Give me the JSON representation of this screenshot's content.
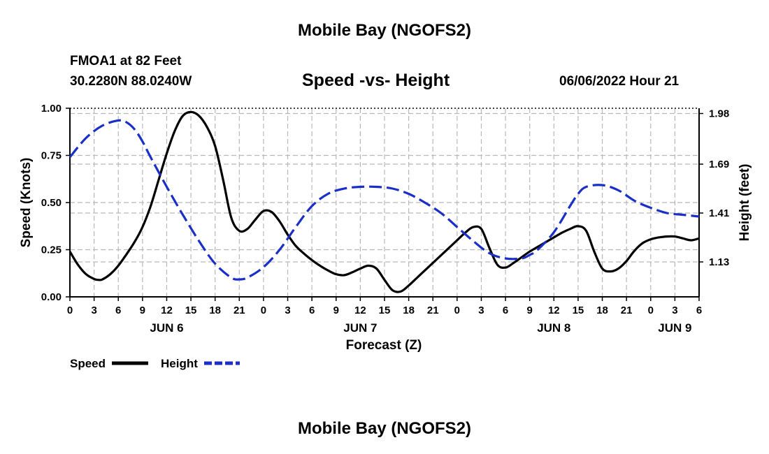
{
  "header": {
    "title": "Mobile Bay (NGOFS2)",
    "station": "FMOA1 at 82 Feet",
    "coords": "30.2280N  88.0240W",
    "datetime": "06/06/2022 Hour 21"
  },
  "footer": {
    "title": "Mobile Bay (NGOFS2)"
  },
  "chart_data": {
    "type": "line",
    "title": "Speed -vs- Height",
    "xlabel": "Forecast (Z)",
    "ylabel": "Speed (Knots)",
    "y2label": "Height (feet)",
    "xlim": [
      0,
      78
    ],
    "ylim": [
      0,
      1.0
    ],
    "y2lim": [
      0.93,
      2.01
    ],
    "x_ticks": [
      0,
      3,
      6,
      9,
      12,
      15,
      18,
      21,
      24,
      27,
      30,
      33,
      36,
      39,
      42,
      45,
      48,
      51,
      54,
      57,
      60,
      63,
      66,
      69,
      72,
      75,
      78
    ],
    "x_tick_labels": [
      "0",
      "3",
      "6",
      "9",
      "12",
      "15",
      "18",
      "21",
      "0",
      "3",
      "6",
      "9",
      "12",
      "15",
      "18",
      "21",
      "0",
      "3",
      "6",
      "9",
      "12",
      "15",
      "18",
      "21",
      "0",
      "3",
      "6"
    ],
    "day_labels": [
      {
        "x": 12,
        "label": "JUN 6"
      },
      {
        "x": 36,
        "label": "JUN 7"
      },
      {
        "x": 60,
        "label": "JUN 8"
      },
      {
        "x": 75,
        "label": "JUN 9"
      }
    ],
    "y_ticks": [
      0.0,
      0.25,
      0.5,
      0.75,
      1.0
    ],
    "y_tick_labels": [
      "0.00",
      "0.25",
      "0.50",
      "0.75",
      "1.00"
    ],
    "y2_ticks": [
      1.13,
      1.41,
      1.69,
      1.98
    ],
    "y2_tick_labels": [
      "1.13",
      "1.41",
      "1.69",
      "1.98"
    ],
    "grid": true,
    "legend": "bottom-left",
    "series": [
      {
        "name": "Speed",
        "axis": "left",
        "color": "#000000",
        "dash": "solid",
        "x": [
          0,
          1,
          2,
          3,
          3.5,
          4,
          5,
          6,
          7,
          8,
          9,
          10,
          11,
          12,
          13,
          14,
          15,
          16,
          17,
          18,
          19,
          20,
          21,
          22,
          23,
          24,
          25,
          26,
          27,
          28,
          29,
          30,
          31,
          32,
          33,
          34,
          35,
          36,
          37,
          38,
          39,
          40,
          41,
          42,
          43,
          44,
          45,
          46,
          47,
          48,
          49,
          50,
          51,
          52,
          53,
          54,
          55,
          56,
          57,
          58,
          59,
          60,
          61,
          62,
          63,
          64,
          65,
          66,
          67,
          68,
          69,
          70,
          71,
          72,
          73,
          74,
          75,
          76,
          77,
          78
        ],
        "values": [
          0.24,
          0.17,
          0.12,
          0.095,
          0.09,
          0.092,
          0.12,
          0.165,
          0.225,
          0.29,
          0.37,
          0.48,
          0.62,
          0.76,
          0.88,
          0.96,
          0.98,
          0.96,
          0.9,
          0.8,
          0.62,
          0.42,
          0.35,
          0.36,
          0.41,
          0.455,
          0.45,
          0.4,
          0.33,
          0.27,
          0.23,
          0.195,
          0.165,
          0.14,
          0.12,
          0.115,
          0.13,
          0.15,
          0.165,
          0.15,
          0.09,
          0.035,
          0.028,
          0.06,
          0.1,
          0.14,
          0.18,
          0.22,
          0.26,
          0.3,
          0.34,
          0.37,
          0.36,
          0.26,
          0.17,
          0.155,
          0.18,
          0.21,
          0.24,
          0.265,
          0.29,
          0.315,
          0.34,
          0.36,
          0.375,
          0.35,
          0.24,
          0.15,
          0.135,
          0.15,
          0.19,
          0.245,
          0.285,
          0.305,
          0.315,
          0.32,
          0.32,
          0.31,
          0.3,
          0.31
        ]
      },
      {
        "name": "Height",
        "axis": "right",
        "color": "#1a2ec8",
        "dash": "dashed",
        "x": [
          0,
          2,
          4,
          6,
          7,
          8,
          9,
          10,
          12,
          14,
          16,
          18,
          20,
          21,
          22,
          24,
          26,
          28,
          30,
          32,
          34,
          36,
          38,
          40,
          42,
          44,
          46,
          48,
          50,
          52,
          54,
          56,
          57,
          58,
          60,
          62,
          63,
          64,
          66,
          68,
          70,
          72,
          74,
          76,
          78
        ],
        "values": [
          1.73,
          1.84,
          1.91,
          1.94,
          1.93,
          1.89,
          1.82,
          1.73,
          1.56,
          1.4,
          1.25,
          1.12,
          1.04,
          1.03,
          1.04,
          1.1,
          1.2,
          1.33,
          1.45,
          1.52,
          1.55,
          1.56,
          1.56,
          1.55,
          1.52,
          1.47,
          1.41,
          1.33,
          1.25,
          1.18,
          1.15,
          1.15,
          1.17,
          1.2,
          1.3,
          1.45,
          1.52,
          1.56,
          1.57,
          1.54,
          1.48,
          1.44,
          1.41,
          1.4,
          1.39
        ]
      }
    ]
  }
}
